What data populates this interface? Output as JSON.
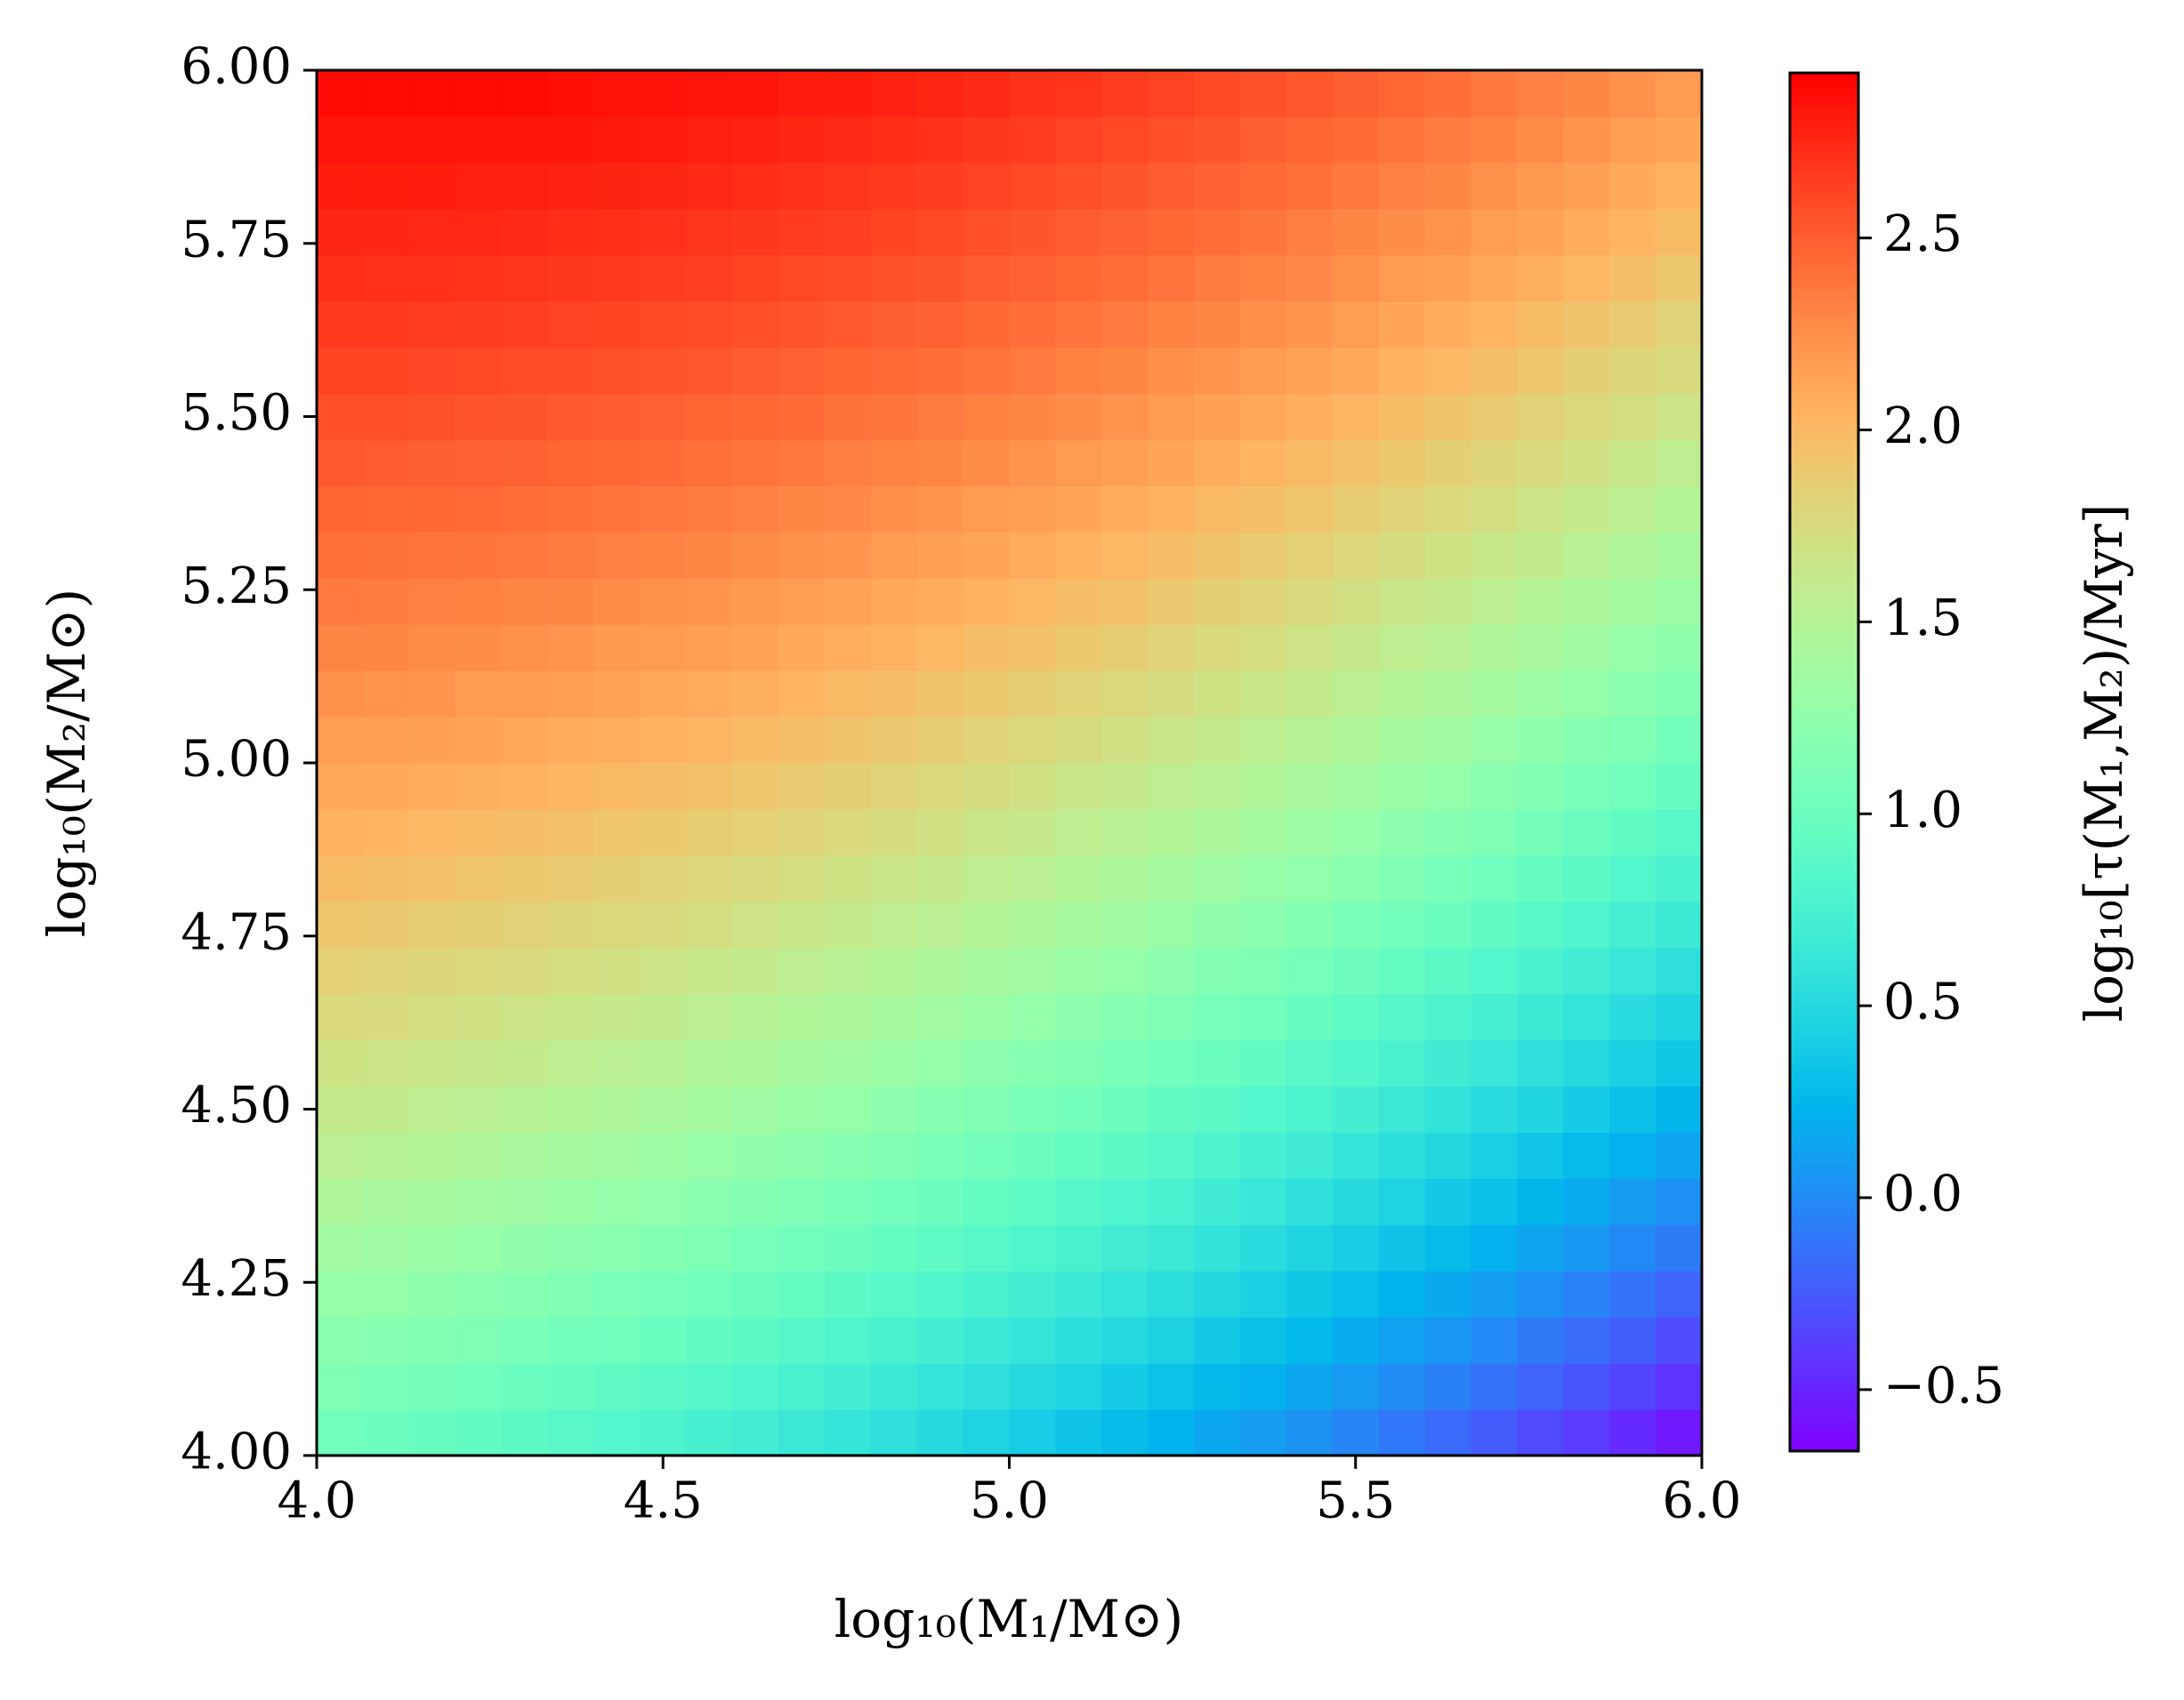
{
  "chart_data": {
    "type": "heatmap",
    "xlabel": "log₁₀(M₁/M⊙)",
    "ylabel": "log₁₀(M₂/M⊙)",
    "colorbar_label": "log₁₀[τ(M₁,M₂)/Myr]",
    "colormap": "rainbow",
    "xlim": [
      4,
      6
    ],
    "ylim": [
      4,
      6
    ],
    "xticks": [
      {
        "value": 4,
        "label": "4.0"
      },
      4.5,
      {
        "value": 5,
        "label": "5.0"
      },
      5.5,
      {
        "value": 6,
        "label": "6.0"
      }
    ],
    "yticks": [
      {
        "value": 4,
        "label": "4.00"
      },
      4.25,
      {
        "value": 4.5,
        "label": "4.50"
      },
      4.75,
      {
        "value": 5,
        "label": "5.00"
      },
      5.25,
      {
        "value": 5.5,
        "label": "5.50"
      },
      5.75,
      {
        "value": 6,
        "label": "6.00"
      }
    ],
    "clim": [
      -0.66,
      2.93
    ],
    "cticks": [
      {
        "value": -0.5,
        "label": "−0.5"
      },
      {
        "value": 0,
        "label": "0.0"
      },
      0.5,
      {
        "value": 1,
        "label": "1.0"
      },
      1.5,
      {
        "value": 2,
        "label": "2.0"
      },
      2.5
    ],
    "z": [
      [
        1.03,
        1.0,
        0.97,
        0.94,
        0.9,
        0.87,
        0.83,
        0.79,
        0.74,
        0.7,
        0.65,
        0.61,
        0.56,
        0.51,
        0.45,
        0.4,
        0.34,
        0.29,
        0.23,
        0.16,
        0.1,
        0.04,
        -0.03,
        -0.1,
        -0.17,
        -0.24,
        -0.32,
        -0.39,
        -0.47,
        -0.55
      ],
      [
        1.12,
        1.09,
        1.06,
        1.03,
        0.99,
        0.96,
        0.92,
        0.88,
        0.84,
        0.8,
        0.75,
        0.71,
        0.66,
        0.61,
        0.56,
        0.5,
        0.45,
        0.39,
        0.33,
        0.27,
        0.21,
        0.15,
        0.08,
        0.01,
        -0.06,
        -0.13,
        -0.2,
        -0.27,
        -0.35,
        -0.43
      ],
      [
        1.21,
        1.18,
        1.15,
        1.12,
        1.09,
        1.05,
        1.02,
        0.98,
        0.94,
        0.9,
        0.85,
        0.81,
        0.76,
        0.71,
        0.66,
        0.61,
        0.55,
        0.5,
        0.44,
        0.38,
        0.32,
        0.26,
        0.19,
        0.12,
        0.06,
        -0.01,
        -0.09,
        -0.16,
        -0.23,
        -0.31
      ],
      [
        1.29,
        1.27,
        1.24,
        1.21,
        1.18,
        1.14,
        1.11,
        1.07,
        1.03,
        0.99,
        0.95,
        0.9,
        0.86,
        0.81,
        0.76,
        0.71,
        0.66,
        0.6,
        0.54,
        0.49,
        0.43,
        0.36,
        0.3,
        0.23,
        0.17,
        0.1,
        0.03,
        -0.05,
        -0.12,
        -0.2
      ],
      [
        1.37,
        1.35,
        1.32,
        1.29,
        1.26,
        1.23,
        1.2,
        1.16,
        1.12,
        1.08,
        1.04,
        1.0,
        0.95,
        0.91,
        0.86,
        0.81,
        0.76,
        0.7,
        0.65,
        0.59,
        0.53,
        0.47,
        0.41,
        0.34,
        0.28,
        0.21,
        0.14,
        0.07,
        -0.01,
        -0.08
      ],
      [
        1.46,
        1.43,
        1.41,
        1.38,
        1.35,
        1.32,
        1.28,
        1.25,
        1.21,
        1.17,
        1.13,
        1.09,
        1.05,
        1.0,
        0.95,
        0.91,
        0.85,
        0.8,
        0.75,
        0.69,
        0.63,
        0.57,
        0.51,
        0.45,
        0.38,
        0.32,
        0.25,
        0.18,
        0.1,
        0.03
      ],
      [
        1.54,
        1.51,
        1.49,
        1.46,
        1.43,
        1.4,
        1.37,
        1.34,
        1.3,
        1.26,
        1.22,
        1.18,
        1.14,
        1.1,
        1.05,
        1.0,
        0.95,
        0.9,
        0.85,
        0.79,
        0.73,
        0.68,
        0.61,
        0.55,
        0.49,
        0.42,
        0.35,
        0.28,
        0.21,
        0.14
      ],
      [
        1.61,
        1.59,
        1.57,
        1.54,
        1.52,
        1.49,
        1.46,
        1.42,
        1.39,
        1.35,
        1.31,
        1.27,
        1.23,
        1.19,
        1.14,
        1.1,
        1.05,
        1.0,
        0.94,
        0.89,
        0.83,
        0.78,
        0.72,
        0.65,
        0.59,
        0.53,
        0.46,
        0.39,
        0.32,
        0.25
      ],
      [
        1.69,
        1.67,
        1.65,
        1.62,
        1.6,
        1.57,
        1.54,
        1.51,
        1.47,
        1.44,
        1.4,
        1.36,
        1.32,
        1.28,
        1.23,
        1.19,
        1.14,
        1.09,
        1.04,
        0.99,
        0.93,
        0.87,
        0.82,
        0.76,
        0.69,
        0.63,
        0.56,
        0.5,
        0.43,
        0.36
      ],
      [
        1.77,
        1.75,
        1.72,
        1.7,
        1.67,
        1.65,
        1.62,
        1.59,
        1.56,
        1.52,
        1.48,
        1.45,
        1.41,
        1.37,
        1.32,
        1.28,
        1.23,
        1.18,
        1.13,
        1.08,
        1.03,
        0.97,
        0.91,
        0.85,
        0.79,
        0.73,
        0.67,
        0.6,
        0.53,
        0.46
      ],
      [
        1.84,
        1.82,
        1.8,
        1.78,
        1.75,
        1.73,
        1.7,
        1.67,
        1.64,
        1.6,
        1.57,
        1.53,
        1.49,
        1.45,
        1.41,
        1.37,
        1.32,
        1.27,
        1.22,
        1.17,
        1.12,
        1.07,
        1.01,
        0.95,
        0.89,
        0.83,
        0.77,
        0.7,
        0.63,
        0.56
      ],
      [
        1.91,
        1.89,
        1.87,
        1.85,
        1.83,
        1.8,
        1.78,
        1.75,
        1.72,
        1.68,
        1.65,
        1.61,
        1.58,
        1.54,
        1.5,
        1.45,
        1.41,
        1.36,
        1.31,
        1.26,
        1.21,
        1.16,
        1.1,
        1.05,
        0.99,
        0.93,
        0.86,
        0.8,
        0.73,
        0.67
      ],
      [
        1.98,
        1.96,
        1.94,
        1.92,
        1.9,
        1.88,
        1.85,
        1.82,
        1.79,
        1.76,
        1.73,
        1.69,
        1.66,
        1.62,
        1.58,
        1.54,
        1.49,
        1.45,
        1.4,
        1.35,
        1.3,
        1.25,
        1.2,
        1.14,
        1.08,
        1.02,
        0.96,
        0.9,
        0.83,
        0.77
      ],
      [
        2.05,
        2.03,
        2.01,
        1.99,
        1.97,
        1.95,
        1.92,
        1.9,
        1.87,
        1.84,
        1.81,
        1.77,
        1.74,
        1.7,
        1.66,
        1.62,
        1.58,
        1.53,
        1.49,
        1.44,
        1.39,
        1.34,
        1.29,
        1.23,
        1.18,
        1.12,
        1.06,
        0.99,
        0.93,
        0.86
      ],
      [
        2.11,
        2.1,
        2.08,
        2.06,
        2.04,
        2.02,
        2.0,
        1.97,
        1.94,
        1.91,
        1.88,
        1.85,
        1.82,
        1.78,
        1.74,
        1.7,
        1.66,
        1.62,
        1.57,
        1.53,
        1.48,
        1.43,
        1.38,
        1.32,
        1.27,
        1.21,
        1.15,
        1.09,
        1.03,
        0.96
      ],
      [
        2.17,
        2.16,
        2.15,
        2.13,
        2.11,
        2.09,
        2.07,
        2.04,
        2.02,
        1.99,
        1.96,
        1.93,
        1.89,
        1.86,
        1.82,
        1.78,
        1.74,
        1.7,
        1.66,
        1.61,
        1.56,
        1.51,
        1.46,
        1.41,
        1.36,
        1.3,
        1.24,
        1.18,
        1.12,
        1.05
      ],
      [
        2.24,
        2.22,
        2.21,
        2.19,
        2.18,
        2.16,
        2.14,
        2.11,
        2.09,
        2.06,
        2.03,
        2.0,
        1.97,
        1.93,
        1.9,
        1.86,
        1.82,
        1.78,
        1.74,
        1.69,
        1.65,
        1.6,
        1.55,
        1.5,
        1.44,
        1.39,
        1.33,
        1.27,
        1.21,
        1.15
      ],
      [
        2.3,
        2.29,
        2.27,
        2.26,
        2.24,
        2.22,
        2.2,
        2.18,
        2.16,
        2.13,
        2.1,
        2.07,
        2.04,
        2.01,
        1.97,
        1.94,
        1.9,
        1.86,
        1.82,
        1.77,
        1.73,
        1.68,
        1.63,
        1.58,
        1.53,
        1.47,
        1.42,
        1.36,
        1.3,
        1.24
      ],
      [
        2.36,
        2.35,
        2.33,
        2.32,
        2.3,
        2.29,
        2.27,
        2.24,
        2.22,
        2.2,
        2.17,
        2.14,
        2.11,
        2.08,
        2.05,
        2.01,
        1.97,
        1.94,
        1.89,
        1.85,
        1.81,
        1.76,
        1.71,
        1.66,
        1.61,
        1.56,
        1.5,
        1.45,
        1.39,
        1.33
      ],
      [
        2.41,
        2.4,
        2.39,
        2.38,
        2.37,
        2.35,
        2.33,
        2.31,
        2.29,
        2.26,
        2.24,
        2.21,
        2.18,
        2.15,
        2.12,
        2.08,
        2.05,
        2.01,
        1.97,
        1.93,
        1.88,
        1.84,
        1.79,
        1.74,
        1.69,
        1.64,
        1.59,
        1.53,
        1.47,
        1.41
      ],
      [
        2.47,
        2.46,
        2.45,
        2.44,
        2.42,
        2.41,
        2.39,
        2.37,
        2.35,
        2.33,
        2.3,
        2.28,
        2.25,
        2.22,
        2.19,
        2.16,
        2.12,
        2.08,
        2.04,
        2.0,
        1.96,
        1.92,
        1.87,
        1.82,
        1.77,
        1.72,
        1.67,
        1.61,
        1.56,
        1.5
      ],
      [
        2.52,
        2.51,
        2.5,
        2.49,
        2.48,
        2.47,
        2.45,
        2.43,
        2.41,
        2.39,
        2.37,
        2.34,
        2.31,
        2.29,
        2.26,
        2.22,
        2.19,
        2.15,
        2.12,
        2.08,
        2.03,
        1.99,
        1.95,
        1.9,
        1.85,
        1.8,
        1.75,
        1.7,
        1.64,
        1.58
      ],
      [
        2.57,
        2.57,
        2.56,
        2.55,
        2.54,
        2.52,
        2.51,
        2.49,
        2.47,
        2.45,
        2.43,
        2.4,
        2.38,
        2.35,
        2.32,
        2.29,
        2.26,
        2.22,
        2.19,
        2.15,
        2.11,
        2.07,
        2.02,
        1.98,
        1.93,
        1.88,
        1.83,
        1.78,
        1.72,
        1.67
      ],
      [
        2.62,
        2.62,
        2.61,
        2.6,
        2.59,
        2.58,
        2.56,
        2.55,
        2.53,
        2.51,
        2.49,
        2.47,
        2.44,
        2.42,
        2.39,
        2.36,
        2.32,
        2.29,
        2.25,
        2.22,
        2.18,
        2.14,
        2.1,
        2.05,
        2.01,
        1.96,
        1.91,
        1.85,
        1.8,
        1.75
      ],
      [
        2.67,
        2.67,
        2.66,
        2.65,
        2.64,
        2.63,
        2.62,
        2.6,
        2.59,
        2.57,
        2.55,
        2.52,
        2.5,
        2.48,
        2.45,
        2.42,
        2.39,
        2.36,
        2.32,
        2.29,
        2.25,
        2.21,
        2.17,
        2.12,
        2.08,
        2.03,
        1.98,
        1.93,
        1.88,
        1.82
      ],
      [
        2.72,
        2.71,
        2.71,
        2.7,
        2.69,
        2.68,
        2.67,
        2.66,
        2.64,
        2.62,
        2.6,
        2.58,
        2.56,
        2.54,
        2.51,
        2.48,
        2.45,
        2.42,
        2.39,
        2.35,
        2.31,
        2.28,
        2.24,
        2.19,
        2.15,
        2.1,
        2.06,
        2.01,
        1.96,
        1.9
      ],
      [
        2.76,
        2.76,
        2.75,
        2.75,
        2.74,
        2.73,
        2.72,
        2.71,
        2.69,
        2.68,
        2.66,
        2.64,
        2.62,
        2.6,
        2.57,
        2.54,
        2.51,
        2.48,
        2.45,
        2.42,
        2.38,
        2.34,
        2.3,
        2.26,
        2.22,
        2.17,
        2.13,
        2.08,
        2.03,
        1.98
      ],
      [
        2.8,
        2.8,
        2.8,
        2.79,
        2.79,
        2.78,
        2.77,
        2.76,
        2.75,
        2.73,
        2.71,
        2.69,
        2.67,
        2.65,
        2.63,
        2.6,
        2.57,
        2.54,
        2.51,
        2.48,
        2.44,
        2.41,
        2.37,
        2.33,
        2.29,
        2.24,
        2.2,
        2.15,
        2.1,
        2.05
      ],
      [
        2.84,
        2.84,
        2.84,
        2.84,
        2.83,
        2.83,
        2.82,
        2.81,
        2.79,
        2.78,
        2.76,
        2.74,
        2.73,
        2.71,
        2.68,
        2.66,
        2.63,
        2.6,
        2.57,
        2.54,
        2.5,
        2.47,
        2.43,
        2.39,
        2.35,
        2.31,
        2.27,
        2.22,
        2.17,
        2.12
      ],
      [
        2.88,
        2.88,
        2.88,
        2.88,
        2.88,
        2.87,
        2.86,
        2.85,
        2.84,
        2.83,
        2.81,
        2.8,
        2.78,
        2.76,
        2.74,
        2.71,
        2.69,
        2.66,
        2.63,
        2.6,
        2.56,
        2.53,
        2.5,
        2.46,
        2.42,
        2.37,
        2.33,
        2.29,
        2.24,
        2.19
      ]
    ]
  }
}
